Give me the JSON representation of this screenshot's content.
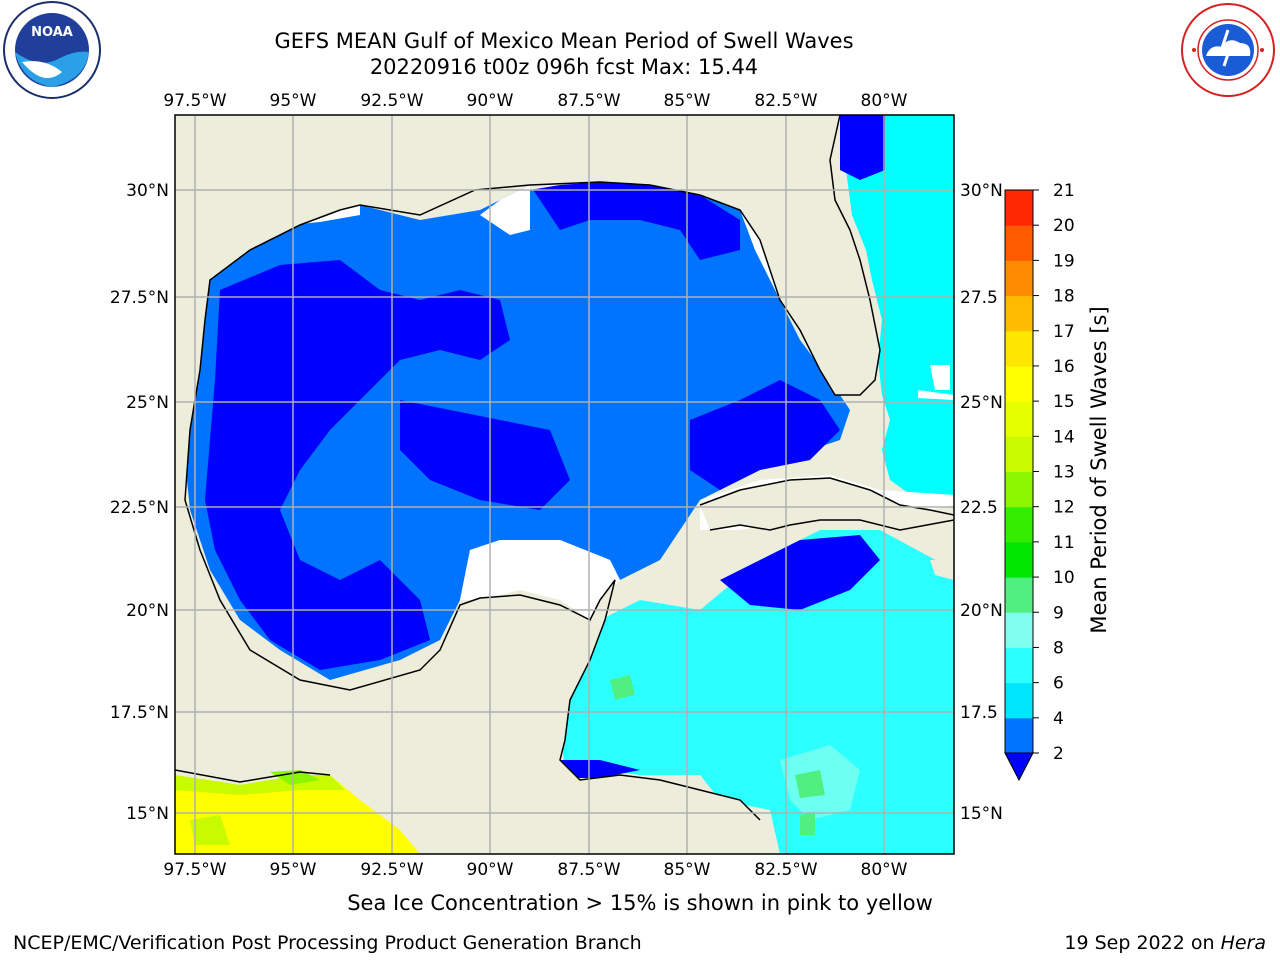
{
  "header": {
    "title_line1": "GEFS MEAN Gulf of Mexico Mean Period of Swell Waves",
    "title_line2": "20220916 t00z 096h fcst   Max: 15.44"
  },
  "logos": {
    "left": {
      "icon": "noaa-logo",
      "text": "NOAA",
      "ring_text": "NATIONAL OCEANIC AND ATMOSPHERIC ADMINISTRATION · U.S. DEPARTMENT OF COMMERCE"
    },
    "right": {
      "icon": "national-weather-service-logo",
      "ring_text": "NATIONAL WEATHER SERVICE"
    }
  },
  "map": {
    "lon_labels": [
      "97.5°W",
      "95°W",
      "92.5°W",
      "90°W",
      "87.5°W",
      "85°W",
      "82.5°W",
      "80°W"
    ],
    "lat_labels_left": [
      "30°N",
      "27.5°N",
      "25°N",
      "22.5°N",
      "20°N",
      "17.5°N",
      "15°N"
    ],
    "lat_labels_right": [
      "30°N",
      "27.5",
      "25°N",
      "22.5",
      "20°N",
      "17.5",
      "15°N"
    ],
    "colors": {
      "land": "#ededdc",
      "ocean_dark": "#0000ff",
      "ocean_mid": "#0073ff",
      "ocean_light": "#00ffff",
      "grid": "#b0b0b0"
    }
  },
  "colorbar": {
    "label": "Mean Period of Swell Waves [s]",
    "ticks": [
      "2",
      "4",
      "6",
      "8",
      "9",
      "10",
      "11",
      "12",
      "13",
      "14",
      "15",
      "16",
      "17",
      "18",
      "19",
      "20",
      "21"
    ],
    "colors": [
      "#0073ff",
      "#00e6ff",
      "#2bffff",
      "#80fff0",
      "#50f080",
      "#00e600",
      "#33ee00",
      "#8cf500",
      "#c8fa00",
      "#e6ff00",
      "#ffff00",
      "#ffe600",
      "#ffbb00",
      "#ff8c00",
      "#ff5a00",
      "#ff2800"
    ],
    "extend_below_color": "#0000ff"
  },
  "footer": {
    "ice_note": "Sea Ice Concentration > 15% is shown in pink to yellow",
    "credit": "NCEP/EMC/Verification Post Processing Product Generation Branch",
    "date": "19 Sep 2022 on",
    "host": "Hera"
  }
}
